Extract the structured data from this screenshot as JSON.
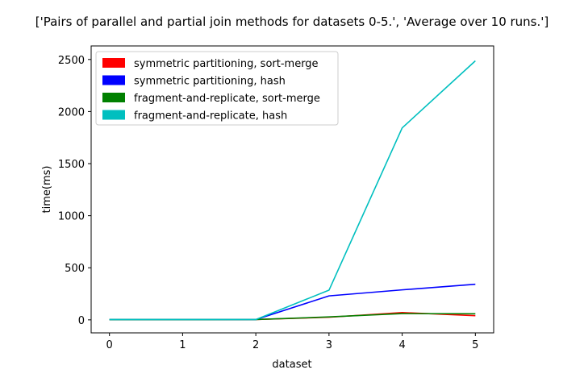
{
  "chart_data": {
    "type": "line",
    "title": "['Pairs of parallel and partial join methods for datasets 0-5.', 'Average over 10 runs.']",
    "xlabel": "dataset",
    "ylabel": "time(ms)",
    "x": [
      0,
      1,
      2,
      3,
      4,
      5
    ],
    "xticks": [
      0,
      1,
      2,
      3,
      4,
      5
    ],
    "yticks": [
      0,
      500,
      1000,
      1500,
      2000,
      2500
    ],
    "xlim": [
      -0.25,
      5.25
    ],
    "ylim": [
      -125,
      2630
    ],
    "grid": false,
    "legend_position": "top-left",
    "series": [
      {
        "name": "symmetric partitioning, sort-merge",
        "color": "#ff0000",
        "values": [
          2,
          2,
          3,
          25,
          70,
          40
        ]
      },
      {
        "name": "symmetric partitioning, hash",
        "color": "#0000ff",
        "values": [
          2,
          2,
          3,
          230,
          288,
          342
        ]
      },
      {
        "name": "fragment-and-replicate, sort-merge",
        "color": "#008000",
        "values": [
          2,
          2,
          3,
          28,
          60,
          58
        ]
      },
      {
        "name": "fragment-and-replicate, hash",
        "color": "#00bfbf",
        "values": [
          3,
          3,
          3,
          285,
          1843,
          2487
        ]
      }
    ]
  }
}
